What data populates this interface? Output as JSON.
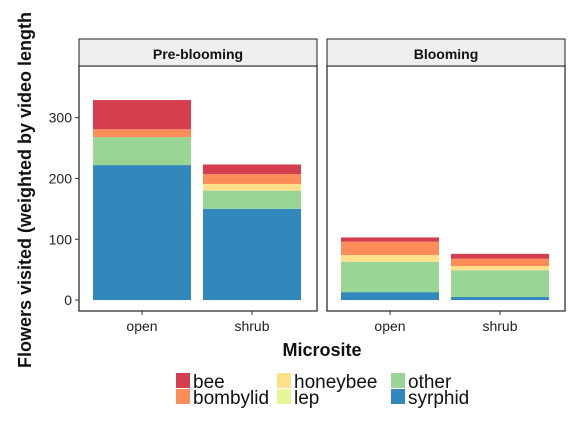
{
  "chart_data": {
    "type": "bar",
    "stacked": true,
    "xlabel": "Microsite",
    "ylabel": "Flowers visited (weighted by video length",
    "ylim": [
      -18,
      385
    ],
    "yticks": [
      0,
      100,
      200,
      300
    ],
    "categories": [
      "open",
      "shrub"
    ],
    "panels": [
      {
        "title": "Pre-blooming",
        "stacks": [
          {
            "category": "open",
            "segments": [
              {
                "series": "syrphid",
                "value": 222
              },
              {
                "series": "other",
                "value": 46
              },
              {
                "series": "lep",
                "value": 0
              },
              {
                "series": "honeybee",
                "value": 0
              },
              {
                "series": "bombylid",
                "value": 13
              },
              {
                "series": "bee",
                "value": 48
              }
            ]
          },
          {
            "category": "shrub",
            "segments": [
              {
                "series": "syrphid",
                "value": 150
              },
              {
                "series": "other",
                "value": 30
              },
              {
                "series": "lep",
                "value": 0
              },
              {
                "series": "honeybee",
                "value": 11
              },
              {
                "series": "bombylid",
                "value": 16
              },
              {
                "series": "bee",
                "value": 16
              }
            ]
          }
        ]
      },
      {
        "title": "Blooming",
        "stacks": [
          {
            "category": "open",
            "segments": [
              {
                "series": "syrphid",
                "value": 13
              },
              {
                "series": "other",
                "value": 50
              },
              {
                "series": "lep",
                "value": 0
              },
              {
                "series": "honeybee",
                "value": 11
              },
              {
                "series": "bombylid",
                "value": 22
              },
              {
                "series": "bee",
                "value": 7
              }
            ]
          },
          {
            "category": "shrub",
            "segments": [
              {
                "series": "syrphid",
                "value": 5
              },
              {
                "series": "other",
                "value": 44
              },
              {
                "series": "lep",
                "value": 0
              },
              {
                "series": "honeybee",
                "value": 7
              },
              {
                "series": "bombylid",
                "value": 12
              },
              {
                "series": "bee",
                "value": 8
              }
            ]
          }
        ]
      }
    ],
    "legend": {
      "position": "bottom",
      "items": [
        {
          "name": "bee",
          "color": "#d53e4f"
        },
        {
          "name": "bombylid",
          "color": "#fc8d59"
        },
        {
          "name": "honeybee",
          "color": "#fee08b"
        },
        {
          "name": "lep",
          "color": "#e6f598"
        },
        {
          "name": "other",
          "color": "#99d594"
        },
        {
          "name": "syrphid",
          "color": "#3288bd"
        }
      ]
    }
  }
}
